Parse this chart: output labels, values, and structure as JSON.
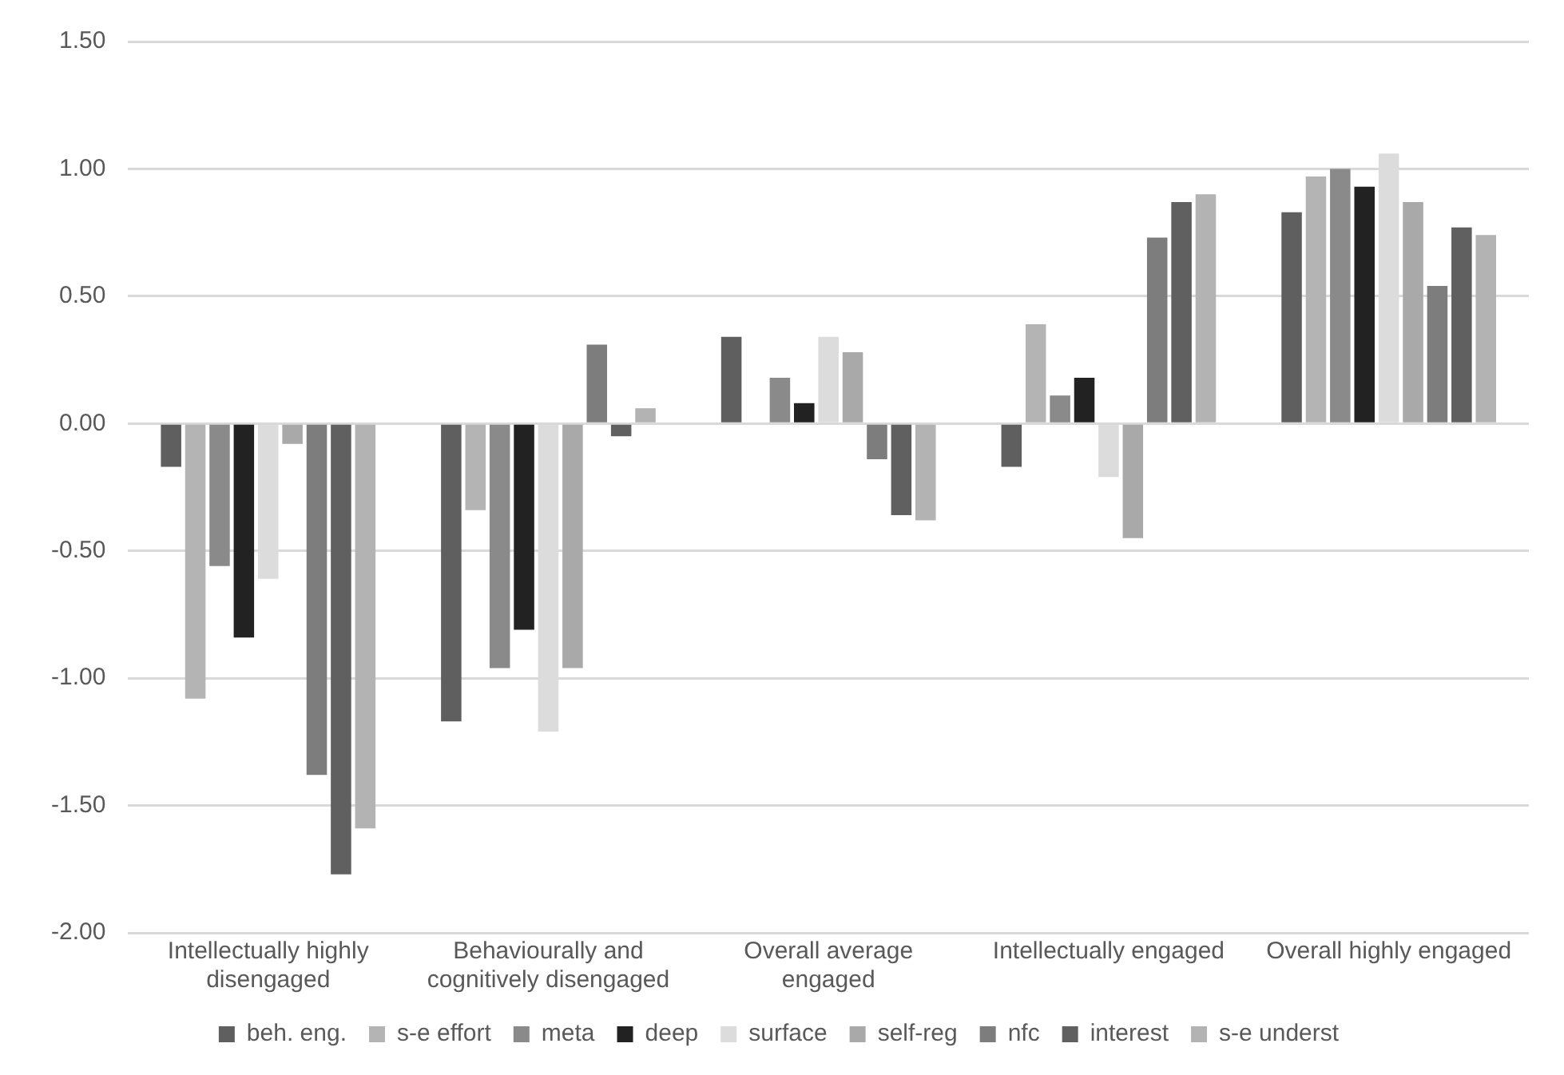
{
  "chart_data": {
    "type": "bar",
    "categories": [
      "Intellectually highly disengaged",
      "Behaviourally and cognitively disengaged",
      "Overall average engaged",
      "Intellectually engaged",
      "Overall highly engaged"
    ],
    "series": [
      {
        "name": "beh. eng.",
        "color": "#5f5f5f",
        "values": [
          -0.17,
          -1.17,
          0.34,
          -0.17,
          0.83
        ]
      },
      {
        "name": "s-e effort",
        "color": "#b4b4b4",
        "values": [
          -1.08,
          -0.34,
          0,
          0.39,
          0.97
        ]
      },
      {
        "name": "meta",
        "color": "#8a8a8a",
        "values": [
          -0.56,
          -0.96,
          0.18,
          0.11,
          1.0
        ]
      },
      {
        "name": "deep",
        "color": "#222222",
        "values": [
          -0.84,
          -0.81,
          0.08,
          0.18,
          0.93
        ]
      },
      {
        "name": "surface",
        "color": "#dcdcdc",
        "values": [
          -0.61,
          -1.21,
          0.34,
          -0.21,
          1.06
        ]
      },
      {
        "name": "self-reg",
        "color": "#a9a9a9",
        "values": [
          -0.08,
          -0.96,
          0.28,
          -0.45,
          0.87
        ]
      },
      {
        "name": "nfc",
        "color": "#7d7d7d",
        "values": [
          -1.38,
          0.31,
          -0.14,
          0.73,
          0.54
        ]
      },
      {
        "name": "interest",
        "color": "#606060",
        "values": [
          -1.77,
          -0.05,
          -0.36,
          0.87,
          0.77
        ]
      },
      {
        "name": "s-e underst",
        "color": "#b3b3b3",
        "values": [
          -1.59,
          0.06,
          -0.38,
          0.9,
          0.74
        ]
      }
    ],
    "ylim": [
      -2,
      1.5
    ],
    "yticks": [
      {
        "value": -2,
        "label": "-2.00"
      },
      {
        "value": -1.5,
        "label": "-1.50"
      },
      {
        "value": -1,
        "label": "-1.00"
      },
      {
        "value": -0.5,
        "label": "-0.50"
      },
      {
        "value": 0,
        "label": "0.00"
      },
      {
        "value": 0.5,
        "label": "0.50"
      },
      {
        "value": 1,
        "label": "1.00"
      },
      {
        "value": 1.5,
        "label": "1.50"
      }
    ],
    "grid": "y",
    "legend": "bottom"
  }
}
